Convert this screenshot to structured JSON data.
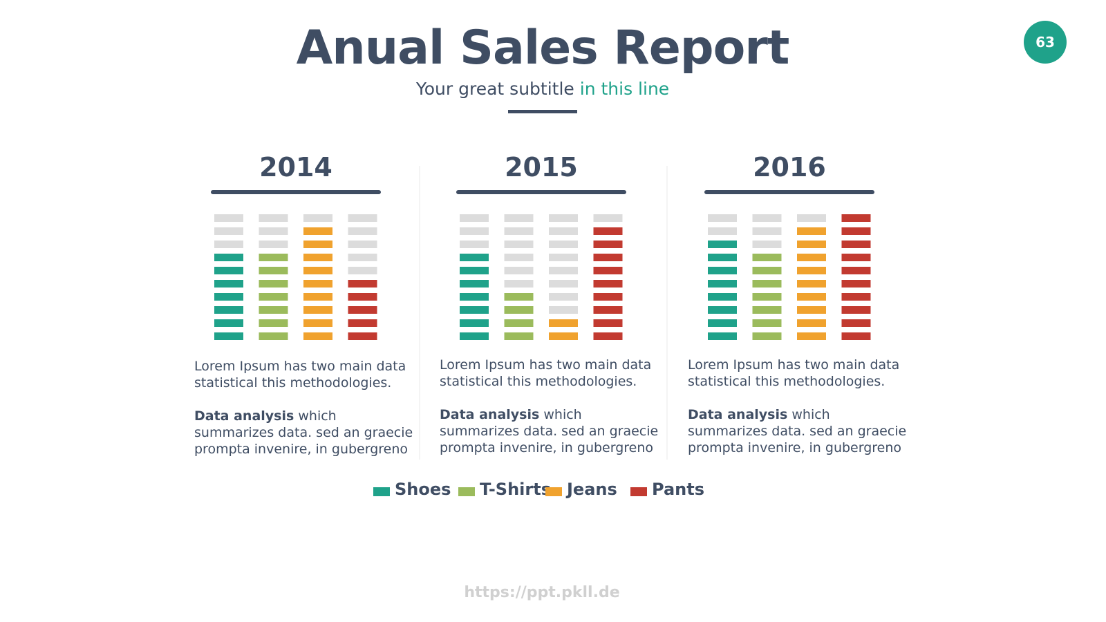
{
  "header": {
    "title": "Anual Sales Report",
    "subtitle": "Your great subtitle",
    "subtitle_highlight": "in this line"
  },
  "page_number": "63",
  "legend": {
    "items": [
      {
        "name": "Shoes",
        "color": "#1fa28a"
      },
      {
        "name": "T-Shirts",
        "color": "#9bbb5c"
      },
      {
        "name": "Jeans",
        "color": "#f0a22e"
      },
      {
        "name": "Pants",
        "color": "#c23a30"
      }
    ]
  },
  "chart_data": [
    {
      "type": "segmented-bar",
      "title": "2014",
      "values": [
        7,
        7,
        9,
        5
      ],
      "ylim": [
        0,
        10
      ]
    },
    {
      "type": "segmented-bar",
      "title": "2015",
      "values": [
        7,
        4,
        2,
        9
      ],
      "ylim": [
        0,
        10
      ]
    },
    {
      "type": "segmented-bar",
      "title": "2016",
      "values": [
        8,
        7,
        9,
        10
      ],
      "ylim": [
        0,
        10
      ]
    }
  ],
  "descriptions": [
    {
      "intro": "Lorem Ipsum has two main data statistical this methodologies.",
      "bold": "Data analysis",
      "rest": "which summarizes data. sed an graecie prompta invenire, in gubergreno"
    },
    {
      "intro": "Lorem Ipsum has two main data statistical this methodologies.",
      "bold": "Data analysis",
      "rest": "which summarizes data. sed an graecie prompta invenire, in gubergreno"
    },
    {
      "intro": "Lorem Ipsum has two main data statistical this methodologies.",
      "bold": "Data analysis",
      "rest": "which summarizes data. sed an graecie prompta invenire, in gubergreno"
    }
  ],
  "footer": "https://ppt.pkll.de"
}
